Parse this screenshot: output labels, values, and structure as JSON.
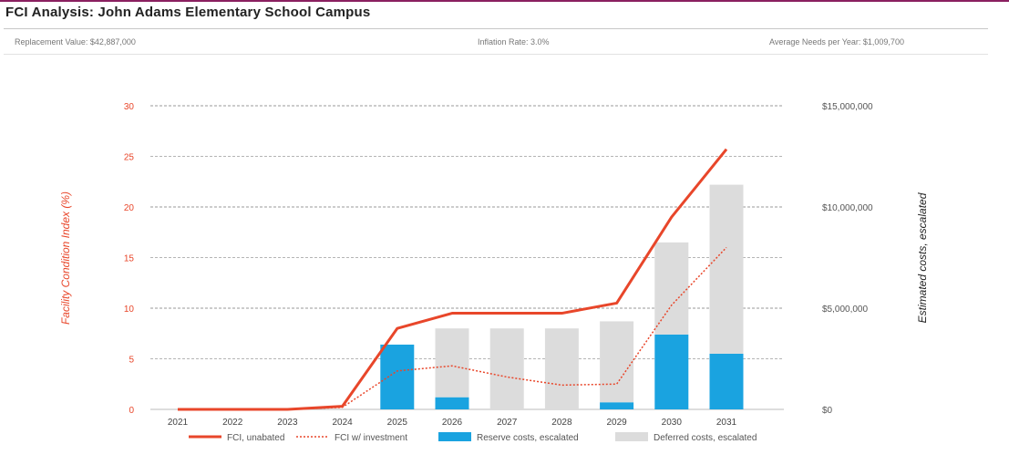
{
  "header": {
    "title": "FCI Analysis: John Adams Elementary School Campus",
    "replacement_value": "Replacement Value: $42,887,000",
    "inflation_rate": "Inflation Rate: 3.0%",
    "average_needs": "Average Needs per Year: $1,009,700"
  },
  "colors": {
    "fci_unabated": "#e8462a",
    "fci_investment": "#e8462a",
    "reserve": "#1aa3e0",
    "deferred": "#dcdcdc",
    "left_axis": "#e8462a"
  },
  "chart_data": {
    "type": "bar",
    "categories": [
      "2021",
      "2022",
      "2023",
      "2024",
      "2025",
      "2026",
      "2027",
      "2028",
      "2029",
      "2030",
      "2031"
    ],
    "left_axis": {
      "label": "Facility Condition Index (%)",
      "range": [
        0,
        30
      ],
      "ticks": [
        "0",
        "5",
        "10",
        "15",
        "20",
        "25",
        "30"
      ]
    },
    "right_axis": {
      "label": "Estimated costs, escalated",
      "range": [
        0,
        15000000
      ],
      "ticks": [
        "$0",
        "$5,000,000",
        "$10,000,000",
        "$15,000,000"
      ]
    },
    "series": [
      {
        "name": "FCI, unabated",
        "kind": "line",
        "style": "solid",
        "axis": "left",
        "values": [
          0,
          0,
          0,
          0.3,
          8,
          9.5,
          9.5,
          9.5,
          10.5,
          19,
          25.7
        ]
      },
      {
        "name": "FCI w/ investment",
        "kind": "line",
        "style": "dotted",
        "axis": "left",
        "values": [
          0,
          0,
          0,
          0.2,
          3.8,
          4.3,
          3.2,
          2.4,
          2.5,
          10.3,
          16
        ]
      },
      {
        "name": "Reserve costs, escalated",
        "kind": "bar",
        "axis": "right",
        "values": [
          0,
          0,
          0,
          0,
          3200000,
          600000,
          0,
          0,
          350000,
          3700000,
          2750000
        ]
      },
      {
        "name": "Deferred costs, escalated",
        "kind": "bar",
        "axis": "right",
        "values": [
          0,
          0,
          0,
          0,
          0,
          3400000,
          4000000,
          4000000,
          4000000,
          4550000,
          8350000
        ]
      }
    ],
    "grid": true,
    "legend_position": "bottom"
  }
}
